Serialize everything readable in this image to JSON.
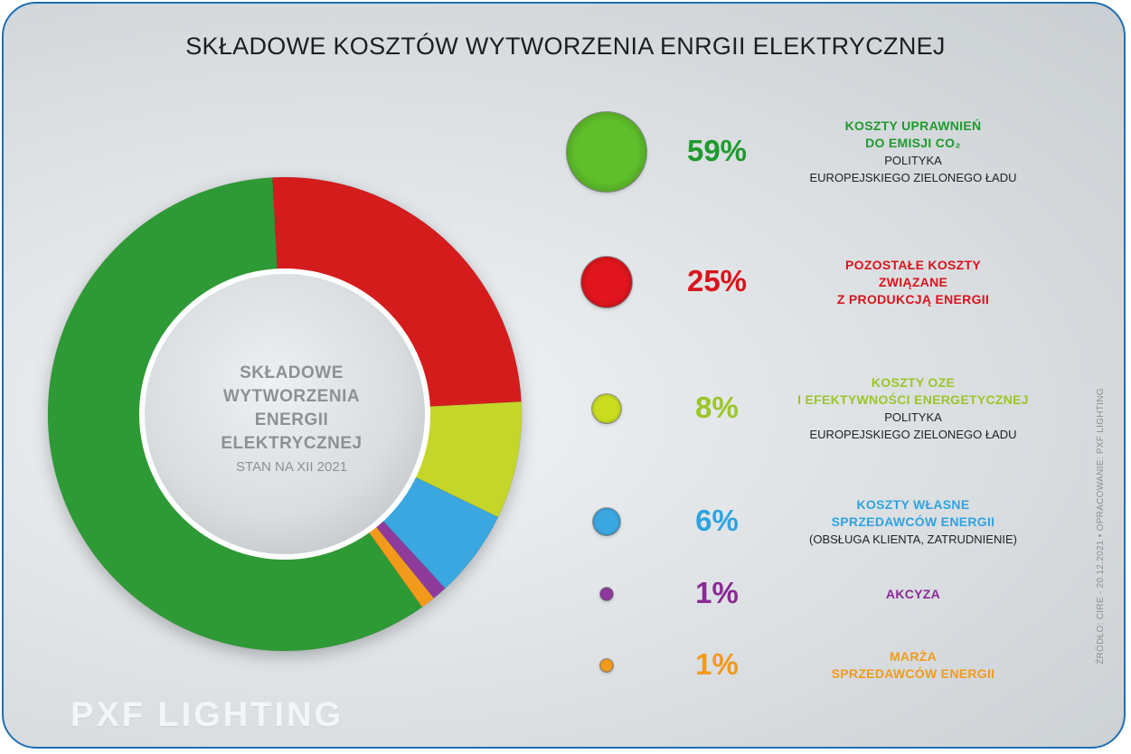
{
  "title": "SKŁADOWE KOSZTÓW WYTWORZENIA ENRGII ELEKTRYCZNEJ",
  "center": {
    "title_lines": [
      "SKŁADOWE",
      "WYTWORZENIA",
      "ENERGII",
      "ELEKTRYCZNEJ"
    ],
    "subtitle": "STAN NA XII 2021"
  },
  "side_note": "ŹRÓDŁO: CIRE - 20.12.2021 • OPRACOWANIE: PXF LIGHTING",
  "logo_text": "PXF LIGHTING",
  "chart_data": {
    "type": "pie",
    "title": "SKŁADOWE KOSZTÓW WYTWORZENIA ENRGII ELEKTRYCZNEJ",
    "unit": "%",
    "donut": true,
    "categories": [
      "KOSZTY UPRAWNIEŃ DO EMISJI CO2",
      "POZOSTAŁE KOSZTY ZWIĄZANE Z PRODUKCJĄ ENERGII",
      "KOSZTY OZE I EFEKTYWNOŚCI ENERGETYCZNEJ",
      "KOSZTY WŁASNE SPRZEDAWCÓW ENERGII",
      "AKCYZA",
      "MARŻA SPRZEDAWCÓW ENERGII"
    ],
    "values": [
      59,
      25,
      8,
      6,
      1,
      1
    ],
    "colors": [
      "#2e9a35",
      "#d51a1f",
      "#c5d62c",
      "#3aa7e0",
      "#8e3a9c",
      "#f29a1b"
    ]
  },
  "legend": [
    {
      "pct_label": "59%",
      "main_lines": [
        "KOSZTY UPRAWNIEŃ",
        "DO EMISJI CO₂"
      ],
      "sub_lines": [
        "POLITYKA",
        "EUROPEJSKIEGO ZIELONEGO ŁADU"
      ],
      "color": "#1f9a2e",
      "dot_color": "#5fbf2a"
    },
    {
      "pct_label": "25%",
      "main_lines": [
        "POZOSTAŁE KOSZTY",
        "ZWIĄZANE",
        "Z PRODUKCJĄ ENERGII"
      ],
      "sub_lines": [],
      "color": "#d8141c",
      "dot_color": "#e0151d"
    },
    {
      "pct_label": "8%",
      "main_lines": [
        "KOSZTY OZE",
        "I EFEKTYWNOŚCI ENERGETYCZNEJ"
      ],
      "sub_lines": [
        "POLITYKA",
        "EUROPEJSKIEGO ZIELONEGO ŁADU"
      ],
      "color": "#9cc52a",
      "dot_color": "#c9dc1e"
    },
    {
      "pct_label": "6%",
      "main_lines": [
        "KOSZTY WŁASNE",
        "SPRZEDAWCÓW ENERGII"
      ],
      "sub_lines": [
        "(OBSŁUGA KLIENTA, ZATRUDNIENIE)"
      ],
      "color": "#2fa3e0",
      "dot_color": "#3aa7e0"
    },
    {
      "pct_label": "1%",
      "main_lines": [
        "AKCYZA"
      ],
      "sub_lines": [],
      "color": "#8a2a93",
      "dot_color": "#8e3a9c"
    },
    {
      "pct_label": "1%",
      "main_lines": [
        "MARŻA",
        "SPRZEDAWCÓW ENERGII"
      ],
      "sub_lines": [],
      "color": "#f29a1b",
      "dot_color": "#f29a1b"
    }
  ]
}
